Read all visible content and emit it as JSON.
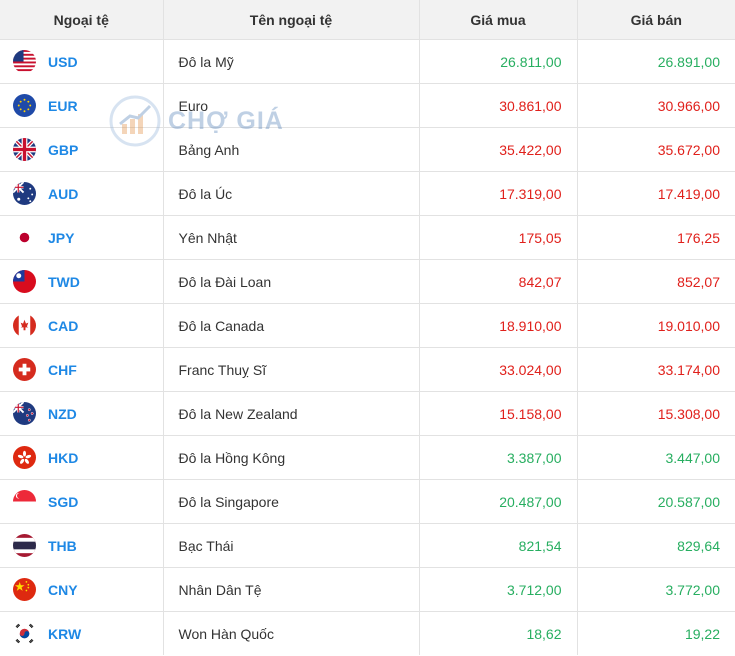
{
  "header": {
    "col_code": "Ngoại tệ",
    "col_name": "Tên ngoại tệ",
    "col_buy": "Giá mua",
    "col_sell": "Giá bán"
  },
  "watermark": {
    "text": "CHỢ GIÁ"
  },
  "rows": [
    {
      "code": "USD",
      "name": "Đô la Mỹ",
      "buy": "26.811,00",
      "sell": "26.891,00",
      "trend": "up"
    },
    {
      "code": "EUR",
      "name": "Euro",
      "buy": "30.861,00",
      "sell": "30.966,00",
      "trend": "down"
    },
    {
      "code": "GBP",
      "name": "Bảng Anh",
      "buy": "35.422,00",
      "sell": "35.672,00",
      "trend": "down"
    },
    {
      "code": "AUD",
      "name": "Đô la Úc",
      "buy": "17.319,00",
      "sell": "17.419,00",
      "trend": "down"
    },
    {
      "code": "JPY",
      "name": "Yên Nhật",
      "buy": "175,05",
      "sell": "176,25",
      "trend": "down"
    },
    {
      "code": "TWD",
      "name": "Đô la Đài Loan",
      "buy": "842,07",
      "sell": "852,07",
      "trend": "down"
    },
    {
      "code": "CAD",
      "name": "Đô la Canada",
      "buy": "18.910,00",
      "sell": "19.010,00",
      "trend": "down"
    },
    {
      "code": "CHF",
      "name": "Franc Thuỵ Sĩ",
      "buy": "33.024,00",
      "sell": "33.174,00",
      "trend": "down"
    },
    {
      "code": "NZD",
      "name": "Đô la New Zealand",
      "buy": "15.158,00",
      "sell": "15.308,00",
      "trend": "down"
    },
    {
      "code": "HKD",
      "name": "Đô la Hồng Kông",
      "buy": "3.387,00",
      "sell": "3.447,00",
      "trend": "up"
    },
    {
      "code": "SGD",
      "name": "Đô la Singapore",
      "buy": "20.487,00",
      "sell": "20.587,00",
      "trend": "up"
    },
    {
      "code": "THB",
      "name": "Bạc Thái",
      "buy": "821,54",
      "sell": "829,64",
      "trend": "up"
    },
    {
      "code": "CNY",
      "name": "Nhân Dân Tệ",
      "buy": "3.712,00",
      "sell": "3.772,00",
      "trend": "up"
    },
    {
      "code": "KRW",
      "name": "Won Hàn Quốc",
      "buy": "18,62",
      "sell": "19,22",
      "trend": "up"
    }
  ],
  "colors": {
    "up": "#27ae60",
    "down": "#e0201b",
    "code": "#1e88e5"
  }
}
